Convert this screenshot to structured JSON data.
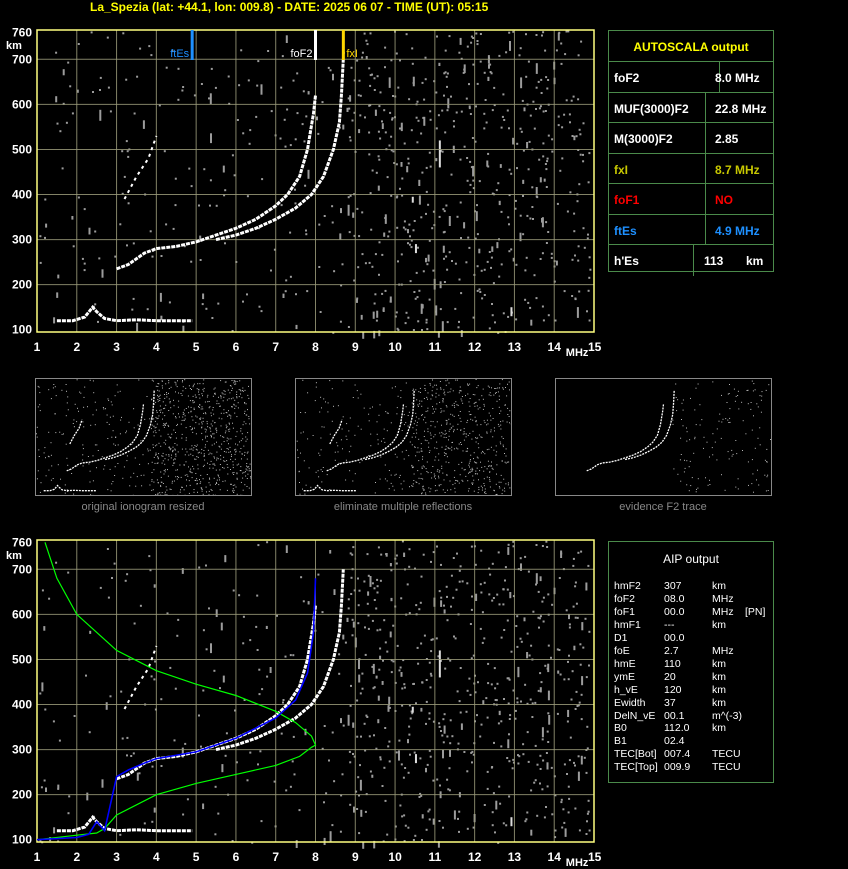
{
  "header": "La_Spezia (lat: +44.1, lon: 009.8) - DATE: 2025 06 07 - TIME (UT): 05:15",
  "autoscala": {
    "title": "AUTOSCALA output",
    "rows": [
      {
        "label": "foF2",
        "value": "8.0 MHz",
        "color": "#ffffff"
      },
      {
        "label": "MUF(3000)F2",
        "value": "22.8 MHz",
        "color": "#ffffff"
      },
      {
        "label": "M(3000)F2",
        "value": "2.85",
        "color": "#ffffff"
      },
      {
        "label": "fxI",
        "value": "8.7 MHz",
        "color": "#c8c800"
      },
      {
        "label": "foF1",
        "value": "NO",
        "color": "#ff0000"
      },
      {
        "label": "ftEs",
        "value": "4.9 MHz",
        "color": "#1e90ff"
      },
      {
        "label": "h'Es",
        "value": "113",
        "unit": "km",
        "color": "#ffffff"
      }
    ]
  },
  "aip": {
    "title": "AIP output",
    "rows": [
      {
        "name": "hmF2",
        "value": "307",
        "unit": "km"
      },
      {
        "name": "foF2",
        "value": "08.0",
        "unit": "MHz"
      },
      {
        "name": "foF1",
        "value": "00.0",
        "unit": "MHz",
        "extra": "[PN]"
      },
      {
        "name": "hmF1",
        "value": "---",
        "unit": "km"
      },
      {
        "name": "D1",
        "value": "00.0",
        "unit": ""
      },
      {
        "name": "foE",
        "value": "2.7",
        "unit": "MHz"
      },
      {
        "name": "hmE",
        "value": "110",
        "unit": "km"
      },
      {
        "name": "ymE",
        "value": "20",
        "unit": "km"
      },
      {
        "name": "h_vE",
        "value": "120",
        "unit": "km"
      },
      {
        "name": "Ewidth",
        "value": "37",
        "unit": "km"
      },
      {
        "name": "DelN_vE",
        "value": "00.1",
        "unit": "m^(-3)"
      },
      {
        "name": "B0",
        "value": "112.0",
        "unit": "km"
      },
      {
        "name": "B1",
        "value": "02.4",
        "unit": ""
      },
      {
        "name": "TEC[Bot]",
        "value": "007.4",
        "unit": "TECU"
      },
      {
        "name": "TEC[Top]",
        "value": "009.9",
        "unit": "TECU"
      }
    ]
  },
  "thumbnails": [
    {
      "label": "original ionogram resized"
    },
    {
      "label": "eliminate multiple reflections"
    },
    {
      "label": "evidence F2 trace"
    }
  ],
  "chart_data": [
    {
      "type": "scatter",
      "title": "",
      "xlabel": "MHz",
      "ylabel": "km",
      "xlim": [
        1,
        15
      ],
      "ylim": [
        95,
        765
      ],
      "x_ticks": [
        "1",
        "2",
        "3",
        "4",
        "5",
        "6",
        "7",
        "8",
        "9",
        "10",
        "11",
        "12",
        "13",
        "14",
        "15"
      ],
      "y_ticks": [
        "100",
        "200",
        "300",
        "400",
        "500",
        "600",
        "700",
        "760"
      ],
      "markers": [
        {
          "label": "ftEs",
          "x": 4.9,
          "color": "#1e90ff"
        },
        {
          "label": "foF2",
          "x": 8.0,
          "color": "#ffffff"
        },
        {
          "label": "fxI",
          "x": 8.7,
          "color": "#ffd700"
        }
      ],
      "traces": {
        "E_sporadic": {
          "x": [
            1.5,
            1.9,
            2.2,
            2.4,
            2.5,
            2.7,
            3.0,
            3.5,
            4.0,
            4.9
          ],
          "y": [
            120,
            120,
            128,
            150,
            140,
            125,
            120,
            122,
            120,
            120
          ]
        },
        "F2_ordinary": {
          "x": [
            3.0,
            3.3,
            3.7,
            4.0,
            4.5,
            5.0,
            5.5,
            6.0,
            6.5,
            7.0,
            7.3,
            7.6,
            7.8,
            7.95,
            8.0
          ],
          "y": [
            235,
            245,
            270,
            280,
            285,
            295,
            310,
            325,
            345,
            375,
            400,
            440,
            500,
            580,
            620
          ]
        },
        "F2_extraordinary": {
          "x": [
            5.5,
            6.0,
            6.5,
            7.0,
            7.5,
            7.9,
            8.2,
            8.45,
            8.6,
            8.65,
            8.7
          ],
          "y": [
            300,
            310,
            325,
            345,
            370,
            400,
            440,
            500,
            560,
            620,
            700
          ]
        },
        "multiple_hop": {
          "x": [
            3.2,
            3.5,
            3.8,
            4.0
          ],
          "y": [
            390,
            440,
            480,
            530
          ]
        }
      }
    },
    {
      "type": "scatter",
      "title": "",
      "xlabel": "MHz",
      "ylabel": "km",
      "xlim": [
        1,
        15
      ],
      "ylim": [
        95,
        765
      ],
      "x_ticks": [
        "1",
        "2",
        "3",
        "4",
        "5",
        "6",
        "7",
        "8",
        "9",
        "10",
        "11",
        "12",
        "13",
        "14",
        "15"
      ],
      "y_ticks": [
        "100",
        "200",
        "300",
        "400",
        "500",
        "600",
        "700",
        "760"
      ],
      "traces": {
        "E_sporadic": {
          "x": [
            1.5,
            1.9,
            2.2,
            2.4,
            2.5,
            2.7,
            3.0,
            3.5,
            4.0,
            4.9
          ],
          "y": [
            120,
            120,
            128,
            150,
            140,
            125,
            120,
            122,
            120,
            120
          ]
        },
        "F2_ordinary": {
          "x": [
            3.0,
            3.3,
            3.7,
            4.0,
            4.5,
            5.0,
            5.5,
            6.0,
            6.5,
            7.0,
            7.3,
            7.6,
            7.8,
            7.95,
            8.0
          ],
          "y": [
            235,
            245,
            270,
            280,
            285,
            295,
            310,
            325,
            345,
            375,
            400,
            440,
            500,
            580,
            620
          ]
        },
        "F2_extraordinary": {
          "x": [
            5.5,
            6.0,
            6.5,
            7.0,
            7.5,
            7.9,
            8.2,
            8.45,
            8.6,
            8.65,
            8.7
          ],
          "y": [
            300,
            310,
            325,
            345,
            370,
            400,
            440,
            500,
            560,
            620,
            700
          ]
        },
        "multiple_hop": {
          "x": [
            3.2,
            3.5,
            3.8,
            4.0
          ],
          "y": [
            390,
            440,
            480,
            530
          ]
        },
        "profile_green": {
          "x": [
            1.0,
            2.0,
            2.5,
            2.7,
            3.0,
            4.0,
            5.0,
            6.0,
            7.0,
            7.6,
            7.9,
            8.0,
            7.9,
            7.5,
            7.0,
            6.0,
            5.0,
            4.0,
            3.0,
            2.0,
            1.5,
            1.2
          ],
          "y": [
            100,
            110,
            115,
            125,
            155,
            200,
            225,
            245,
            265,
            285,
            305,
            310,
            330,
            360,
            385,
            420,
            445,
            475,
            520,
            600,
            680,
            760
          ]
        },
        "virtual_blue": {
          "x": [
            1.0,
            2.0,
            2.3,
            2.5,
            2.6,
            2.7,
            3.0,
            3.3,
            3.7,
            4.0,
            5.0,
            6.0,
            7.0,
            7.5,
            7.8,
            7.95,
            8.0
          ],
          "y": [
            100,
            105,
            112,
            140,
            130,
            120,
            240,
            255,
            270,
            280,
            295,
            325,
            370,
            410,
            470,
            560,
            680
          ]
        }
      }
    }
  ],
  "colors": {
    "axis": "#ffff80",
    "grid": "#9a9a7a",
    "trace": "#ffffff",
    "noise": "#9c9c9c",
    "profile": "#00ff00",
    "virtual": "#0000ff",
    "table_border": "#4a8a4a",
    "table_title": "#ffff00"
  }
}
